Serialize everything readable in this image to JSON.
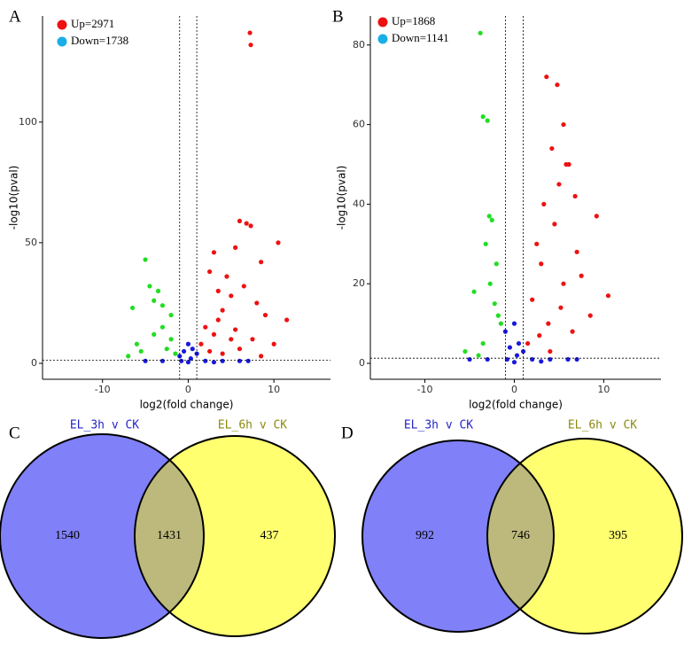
{
  "chart_data": [
    {
      "type": "scatter",
      "panel": "A",
      "xlabel": "log2(fold change)",
      "ylabel": "-log10(pval)",
      "xlim": [
        -17,
        16.6
      ],
      "ylim": [
        -6.6,
        144
      ],
      "xticks": [
        -10,
        0,
        10
      ],
      "yticks": [
        0,
        50,
        100
      ],
      "vlines": [
        -1,
        1
      ],
      "hline": 1.3,
      "series": [
        {
          "name": "Up=2971",
          "color": "#ee1111",
          "legend_color": "#ee1111",
          "x": [
            7.2,
            7.3,
            6.0,
            6.8,
            7.3,
            10.5,
            5.5,
            8.5,
            3.0,
            4.5,
            2.5,
            3.5,
            5.0,
            6.5,
            8.0,
            9.0,
            11.5,
            4.0,
            2.0,
            3.0,
            5.5,
            7.5,
            1.5,
            2.5,
            4.0,
            6.0,
            8.5,
            10.0,
            3.5,
            5.0
          ],
          "values": [
            137,
            132,
            59,
            58,
            57,
            50,
            48,
            42,
            46,
            36,
            38,
            30,
            28,
            32,
            25,
            20,
            18,
            22,
            15,
            12,
            14,
            10,
            8,
            5,
            4,
            6,
            3,
            8,
            18,
            10
          ]
        },
        {
          "name": "Down=1738",
          "color": "#22dd22",
          "legend_color": "#1aaee6",
          "x": [
            -5,
            -4.5,
            -6.5,
            -3.5,
            -4,
            -3,
            -7,
            -5.5,
            -2,
            -3,
            -2.5,
            -1.5,
            -4,
            -6,
            -2
          ],
          "values": [
            43,
            32,
            23,
            30,
            26,
            24,
            3,
            5,
            10,
            15,
            6,
            4,
            12,
            8,
            20
          ]
        },
        {
          "color": "#1a1adc",
          "x": [
            -1,
            -0.5,
            0,
            0.5,
            1,
            -0.8,
            0.3,
            2,
            4,
            6,
            -3,
            -5,
            3,
            7,
            0
          ],
          "values": [
            3,
            5,
            8,
            6,
            4,
            1,
            2,
            1,
            1,
            1,
            1,
            1,
            0.5,
            1,
            0.5
          ]
        }
      ]
    },
    {
      "type": "scatter",
      "panel": "B",
      "xlabel": "log2(fold change)",
      "ylabel": "-log10(pval)",
      "xlim": [
        -16.1,
        16.4
      ],
      "ylim": [
        -4,
        87.3
      ],
      "xticks": [
        -10,
        0,
        10
      ],
      "yticks": [
        0,
        20,
        40,
        60,
        80
      ],
      "vlines": [
        -1,
        1
      ],
      "hline": 1.3,
      "series": [
        {
          "name": "Up=1868",
          "color": "#ee1111",
          "legend_color": "#ee1111",
          "x": [
            3.6,
            4.8,
            5.5,
            4.2,
            5.8,
            6.1,
            9.2,
            5.0,
            6.8,
            3.3,
            2.5,
            4.5,
            3.0,
            7.0,
            5.5,
            2.0,
            8.5,
            10.5,
            3.8,
            6.5,
            1.5,
            4.0,
            2.8,
            5.2,
            7.5
          ],
          "values": [
            72,
            70,
            60,
            54,
            50,
            50,
            37,
            45,
            42,
            40,
            30,
            35,
            25,
            28,
            20,
            16,
            12,
            17,
            10,
            8,
            5,
            3,
            7,
            14,
            22
          ]
        },
        {
          "name": "Down=1141",
          "color": "#22dd22",
          "legend_color": "#1aaee6",
          "x": [
            -3.8,
            -3.5,
            -3.0,
            -2.8,
            -2.5,
            -3.2,
            -2.0,
            -4.5,
            -5.5,
            -2.2,
            -1.5,
            -3.5,
            -4.0,
            -2.7,
            -1.8
          ],
          "values": [
            83,
            62,
            61,
            37,
            36,
            30,
            25,
            18,
            3,
            15,
            10,
            5,
            2,
            20,
            12
          ]
        },
        {
          "color": "#1a1adc",
          "x": [
            -1,
            -0.5,
            0,
            0.5,
            1,
            -0.8,
            0.3,
            2,
            4,
            6,
            -3,
            -5,
            3,
            7,
            0
          ],
          "values": [
            8,
            4,
            10,
            5,
            3,
            1,
            2,
            1,
            1,
            1,
            1,
            1,
            0.5,
            1,
            0.3
          ]
        }
      ]
    },
    {
      "type": "venn",
      "panel": "C",
      "sets": [
        "EL_3h v CK",
        "EL_6h v CK"
      ],
      "set_colors": [
        "#8080f8",
        "#ffff70"
      ],
      "overlap_color": "#bdb97c",
      "label_colors": [
        "#2424c8",
        "#8a8a10"
      ],
      "values": [
        1540,
        1431,
        437
      ]
    },
    {
      "type": "venn",
      "panel": "D",
      "sets": [
        "EL_3h v CK",
        "EL_6h v CK"
      ],
      "set_colors": [
        "#8080f8",
        "#ffff70"
      ],
      "overlap_color": "#bdb97c",
      "label_colors": [
        "#2424c8",
        "#8a8a10"
      ],
      "values": [
        992,
        746,
        395
      ]
    }
  ]
}
